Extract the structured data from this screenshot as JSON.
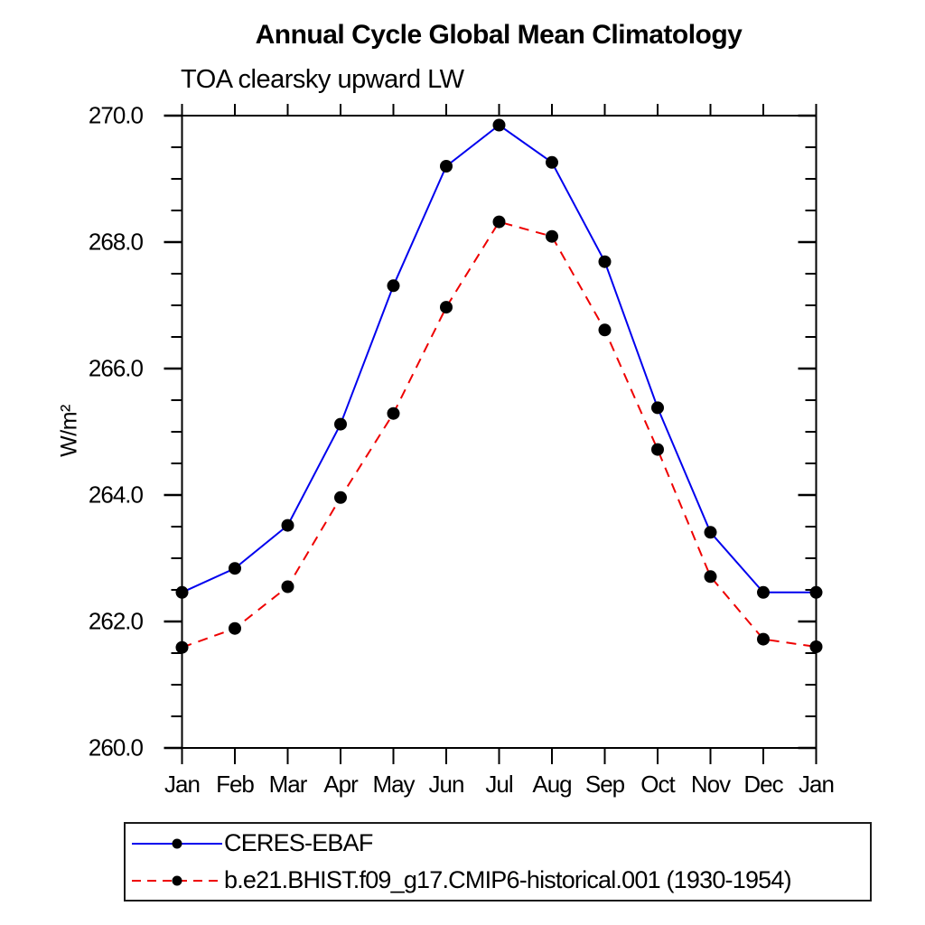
{
  "title": "Annual Cycle Global Mean Climatology",
  "subtitle": "TOA clearsky upward LW",
  "chart_data": {
    "type": "line",
    "x_categories": [
      "Jan",
      "Feb",
      "Mar",
      "Apr",
      "May",
      "Jun",
      "Jul",
      "Aug",
      "Sep",
      "Oct",
      "Nov",
      "Dec",
      "Jan"
    ],
    "ylabel": "W/m²",
    "ylim": [
      260.0,
      270.0
    ],
    "y_major_ticks": [
      "270.0",
      "268.0",
      "266.0",
      "264.0",
      "262.0",
      "260.0"
    ],
    "y_major_values": [
      270.0,
      268.0,
      266.0,
      264.0,
      262.0,
      260.0
    ],
    "y_minor_step": 0.5,
    "grid": false,
    "legend_position": "bottom-left",
    "axis_color": "#000000",
    "marker": "filled-circle",
    "marker_color": "#000000",
    "series": [
      {
        "name": "CERES-EBAF",
        "color": "#0000ee",
        "style": "solid",
        "values": [
          262.46,
          262.84,
          263.52,
          265.12,
          267.31,
          269.2,
          269.85,
          269.26,
          267.69,
          265.38,
          263.41,
          262.46,
          262.46
        ]
      },
      {
        "name": "b.e21.BHIST.f09_g17.CMIP6-historical.001 (1930-1954)",
        "color": "#ee0000",
        "style": "dashed",
        "values": [
          261.59,
          261.89,
          262.55,
          263.96,
          265.29,
          266.97,
          268.32,
          268.09,
          266.61,
          264.72,
          262.71,
          261.72,
          261.6
        ]
      }
    ]
  }
}
